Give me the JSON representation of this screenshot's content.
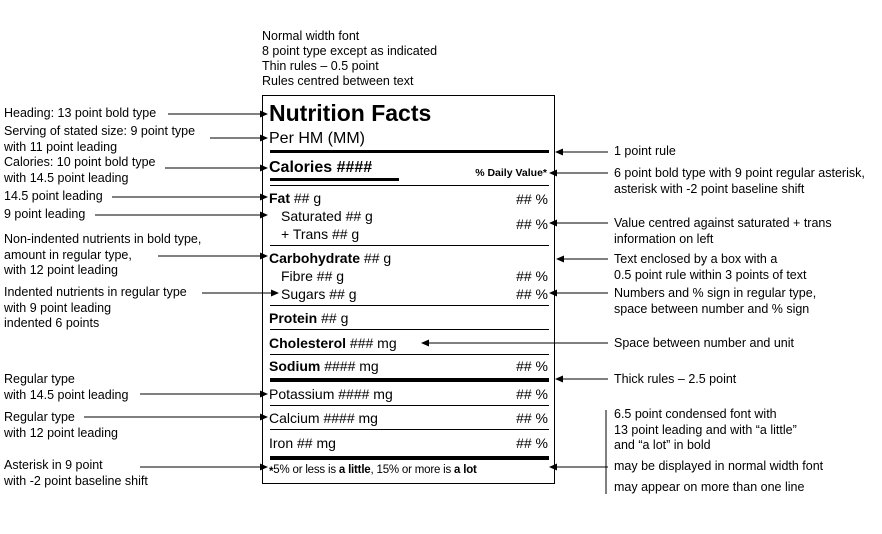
{
  "top_notes": [
    "Normal width font",
    "8 point type except as indicated",
    "Thin rules – 0.5 point",
    "Rules centred between text"
  ],
  "left_notes": {
    "heading": "Heading: 13 point bold type",
    "serving": [
      "Serving of stated size: 9 point type",
      "with 11 point leading"
    ],
    "calories": [
      "Calories: 10 point bold type",
      "with 14.5 point leading"
    ],
    "leading145": "14.5 point leading",
    "leading9": "9 point leading",
    "nonindented": [
      "Non-indented nutrients in bold type,",
      "amount in regular type,",
      "with 12 point leading"
    ],
    "indented": [
      "Indented nutrients in regular type",
      "with 9 point leading",
      "indented 6 points"
    ],
    "regular145": [
      "Regular type",
      "with 14.5 point leading"
    ],
    "regular12": [
      "Regular type",
      "with 12 point leading"
    ],
    "asterisk": [
      "Asterisk in 9 point",
      "with -2 point baseline shift"
    ]
  },
  "right_notes": {
    "rule1": "1 point rule",
    "dv_type": [
      "6 point bold type with 9 point regular asterisk,",
      "asterisk with -2 point baseline shift"
    ],
    "centred": [
      "Value centred against saturated + trans",
      "information on left"
    ],
    "box": [
      "Text enclosed by a box with a",
      "0.5 point rule within 3 points of text"
    ],
    "numbers": [
      "Numbers and % sign in regular type,",
      "space between number and % sign"
    ],
    "space": "Space between number and unit",
    "thick": "Thick rules – 2.5 point",
    "condensed": [
      "6.5 point condensed font with",
      "13 point leading and with “a little”",
      "and “a lot” in bold"
    ],
    "normal_width": "may be displayed in normal width font",
    "multi_line": "may appear on more than one line"
  },
  "label": {
    "title": "Nutrition Facts",
    "serving": "Per HM (MM)",
    "calories": "Calories ####",
    "dv_header": "% Daily Value*",
    "fat_name": "Fat",
    "fat_amt": " ## g",
    "fat_pct": "## %",
    "saturated": "Saturated ## g",
    "trans": "+ Trans ## g",
    "sat_trans_pct": "## %",
    "carb_name": "Carbohydrate",
    "carb_amt": " ## g",
    "fibre": "Fibre ## g",
    "fibre_pct": "## %",
    "sugars": "Sugars ## g",
    "sugars_pct": "## %",
    "protein_name": "Protein",
    "protein_amt": " ## g",
    "chol_name": "Cholesterol",
    "chol_amt": " ### mg",
    "sodium_name": "Sodium",
    "sodium_amt": " #### mg",
    "sodium_pct": "## %",
    "potassium": "Potassium #### mg",
    "potassium_pct": "## %",
    "calcium": "Calcium #### mg",
    "calcium_pct": "## %",
    "iron": "Iron ## mg",
    "iron_pct": "## %",
    "foot_star": "*",
    "foot_1": "5% or less is ",
    "foot_little": "a little",
    "foot_2": ", 15% or more is ",
    "foot_lot": "a lot"
  }
}
